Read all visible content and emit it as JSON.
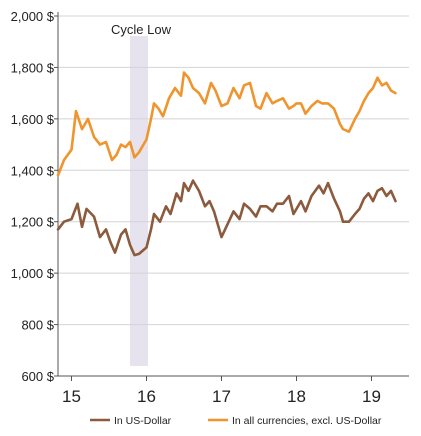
{
  "chart_data": {
    "type": "line",
    "title": "",
    "xlabel": "",
    "ylabel": "",
    "xlim": [
      14.82,
      19.5
    ],
    "ylim": [
      600,
      2000
    ],
    "x_ticks": [
      15,
      16,
      17,
      18,
      19
    ],
    "x_tick_labels": [
      "15",
      "16",
      "17",
      "18",
      "19"
    ],
    "y_ticks": [
      600,
      800,
      1000,
      1200,
      1400,
      1600,
      1800,
      2000
    ],
    "y_tick_labels": [
      "600 $",
      "800 $",
      "1,000 $",
      "1,200 $",
      "1,400 $",
      "1,600 $",
      "1,800 $",
      "2,000 $"
    ],
    "grid": "horizontal",
    "legend_position": "bottom",
    "shaded_region": {
      "label": "Cycle Low",
      "x_start": 15.78,
      "x_end": 16.02,
      "color": "#e6e3ef"
    },
    "series": [
      {
        "name": "In US-Dollar",
        "color": "#8c5a3c",
        "x": [
          14.82,
          14.9,
          15.0,
          15.08,
          15.14,
          15.2,
          15.3,
          15.38,
          15.46,
          15.52,
          15.58,
          15.66,
          15.72,
          15.78,
          15.84,
          15.9,
          16.0,
          16.06,
          16.1,
          16.18,
          16.26,
          16.32,
          16.4,
          16.46,
          16.5,
          16.56,
          16.62,
          16.7,
          16.78,
          16.84,
          16.9,
          17.0,
          17.08,
          17.16,
          17.24,
          17.3,
          17.38,
          17.46,
          17.52,
          17.6,
          17.68,
          17.74,
          17.82,
          17.9,
          17.96,
          18.0,
          18.06,
          18.12,
          18.2,
          18.3,
          18.36,
          18.42,
          18.5,
          18.58,
          18.62,
          18.7,
          18.78,
          18.84,
          18.9,
          18.96,
          19.02,
          19.08,
          19.14,
          19.2,
          19.26,
          19.32
        ],
        "values": [
          1170,
          1200,
          1210,
          1270,
          1180,
          1250,
          1220,
          1140,
          1170,
          1120,
          1080,
          1150,
          1170,
          1110,
          1070,
          1075,
          1100,
          1170,
          1230,
          1200,
          1260,
          1230,
          1310,
          1280,
          1350,
          1320,
          1360,
          1320,
          1260,
          1280,
          1240,
          1140,
          1190,
          1240,
          1210,
          1270,
          1250,
          1220,
          1260,
          1260,
          1240,
          1270,
          1270,
          1300,
          1230,
          1250,
          1280,
          1240,
          1300,
          1340,
          1310,
          1350,
          1290,
          1240,
          1200,
          1200,
          1230,
          1250,
          1290,
          1310,
          1280,
          1320,
          1330,
          1300,
          1320,
          1280
        ]
      },
      {
        "name": "In all currencies, excl. US-Dollar",
        "color": "#f0952e",
        "x": [
          14.82,
          14.9,
          15.0,
          15.06,
          15.14,
          15.22,
          15.3,
          15.38,
          15.46,
          15.54,
          15.6,
          15.66,
          15.72,
          15.78,
          15.84,
          15.9,
          16.0,
          16.06,
          16.1,
          16.16,
          16.22,
          16.3,
          16.38,
          16.46,
          16.5,
          16.56,
          16.62,
          16.7,
          16.78,
          16.86,
          16.92,
          17.0,
          17.08,
          17.16,
          17.24,
          17.3,
          17.38,
          17.46,
          17.52,
          17.6,
          17.68,
          17.74,
          17.82,
          17.9,
          17.96,
          18.0,
          18.06,
          18.12,
          18.2,
          18.28,
          18.34,
          18.42,
          18.5,
          18.58,
          18.62,
          18.7,
          18.78,
          18.84,
          18.9,
          18.96,
          19.02,
          19.08,
          19.14,
          19.2,
          19.26,
          19.32
        ],
        "values": [
          1380,
          1440,
          1480,
          1630,
          1560,
          1600,
          1530,
          1500,
          1510,
          1440,
          1460,
          1500,
          1490,
          1510,
          1450,
          1470,
          1520,
          1600,
          1660,
          1640,
          1610,
          1680,
          1720,
          1690,
          1780,
          1760,
          1720,
          1700,
          1660,
          1740,
          1710,
          1650,
          1660,
          1720,
          1680,
          1730,
          1740,
          1650,
          1640,
          1700,
          1660,
          1670,
          1680,
          1640,
          1650,
          1660,
          1660,
          1620,
          1650,
          1670,
          1660,
          1660,
          1640,
          1580,
          1560,
          1550,
          1600,
          1630,
          1670,
          1700,
          1720,
          1760,
          1730,
          1740,
          1710,
          1700
        ]
      }
    ]
  }
}
